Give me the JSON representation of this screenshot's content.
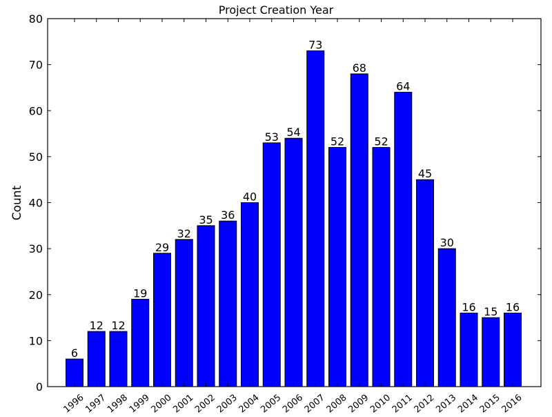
{
  "chart_data": {
    "type": "bar",
    "title": "Project Creation Year",
    "xlabel": "",
    "ylabel": "Count",
    "categories": [
      "1996",
      "1997",
      "1998",
      "1999",
      "2000",
      "2001",
      "2002",
      "2003",
      "2004",
      "2005",
      "2006",
      "2007",
      "2008",
      "2009",
      "2010",
      "2011",
      "2012",
      "2013",
      "2014",
      "2015",
      "2016"
    ],
    "values": [
      6,
      12,
      12,
      19,
      29,
      32,
      35,
      36,
      40,
      53,
      54,
      73,
      52,
      68,
      52,
      64,
      45,
      30,
      16,
      15,
      16
    ],
    "data_labels": [
      "6",
      "12",
      "12",
      "19",
      "29",
      "32",
      "35",
      "36",
      "40",
      "53",
      "54",
      "73",
      "52",
      "68",
      "52",
      "64",
      "45",
      "30",
      "16",
      "15",
      "16"
    ],
    "y_ticks": [
      "0",
      "10",
      "20",
      "30",
      "40",
      "50",
      "60",
      "70",
      "80"
    ],
    "ylim": [
      0,
      80
    ],
    "bar_color": "#0000ff",
    "grid": false,
    "x_tick_rotation": "rotated"
  }
}
